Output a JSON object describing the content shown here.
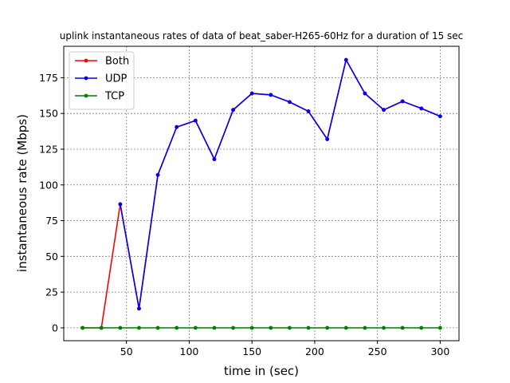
{
  "chart_data": {
    "type": "line",
    "title": "uplink instantaneous rates of data of beat_saber-H265-60Hz for a duration of 15 sec",
    "xlabel": "time in (sec)",
    "ylabel": "instantaneous rate (Mbps)",
    "xlim": [
      0,
      315
    ],
    "ylim": [
      -9,
      197
    ],
    "xticks": [
      50,
      100,
      150,
      200,
      250,
      300
    ],
    "yticks": [
      0,
      25,
      50,
      75,
      100,
      125,
      150,
      175
    ],
    "grid": true,
    "legend_position": "top-left",
    "x": [
      15,
      30,
      45,
      60,
      75,
      90,
      105,
      120,
      135,
      150,
      165,
      180,
      195,
      210,
      225,
      240,
      255,
      270,
      285,
      300
    ],
    "series": [
      {
        "name": "Both",
        "color": "#ff0000",
        "values": [
          0,
          0,
          86.5,
          13.5,
          107,
          140.5,
          145,
          118,
          152.5,
          164,
          163,
          158,
          151.5,
          132,
          187.5,
          164,
          152.5,
          158.5,
          153.5,
          148
        ]
      },
      {
        "name": "UDP",
        "color": "#0000ff",
        "values": [
          null,
          null,
          86.5,
          13.5,
          107,
          140.5,
          145,
          118,
          152.5,
          164,
          163,
          158,
          151.5,
          132,
          187.5,
          164,
          152.5,
          158.5,
          153.5,
          148
        ]
      },
      {
        "name": "TCP",
        "color": "#008000",
        "values": [
          0,
          0,
          0,
          0,
          0,
          0,
          0,
          0,
          0,
          0,
          0,
          0,
          0,
          0,
          0,
          0,
          0,
          0,
          0,
          0
        ]
      }
    ]
  }
}
